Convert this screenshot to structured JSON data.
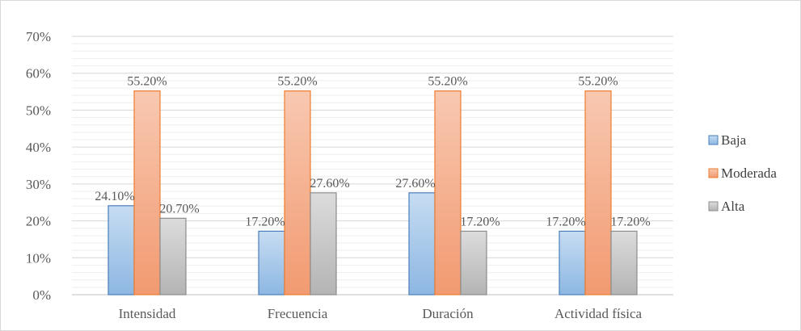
{
  "chart_data": {
    "type": "bar",
    "title": "",
    "xlabel": "",
    "ylabel": "",
    "categories": [
      "Intensidad",
      "Frecuencia",
      "Duración",
      "Actividad física"
    ],
    "series": [
      {
        "name": "Baja",
        "values": [
          24.1,
          17.2,
          27.6,
          17.2
        ],
        "labels": [
          "24.10%",
          "17.20%",
          "27.60%",
          "17.20%"
        ],
        "color": "#9dc3e6"
      },
      {
        "name": "Moderada",
        "values": [
          55.2,
          55.2,
          55.2,
          55.2
        ],
        "labels": [
          "55.20%",
          "55.20%",
          "55.20%",
          "55.20%"
        ],
        "color": "#f4a582"
      },
      {
        "name": "Alta",
        "values": [
          20.7,
          27.6,
          17.2,
          17.2
        ],
        "labels": [
          "20.70%",
          "27.60%",
          "17.20%",
          "17.20%"
        ],
        "color": "#bfbfbf"
      }
    ],
    "ylim": [
      0,
      70
    ],
    "yticks": [
      0,
      10,
      20,
      30,
      40,
      50,
      60,
      70
    ],
    "ytick_labels": [
      "0%",
      "10%",
      "20%",
      "30%",
      "40%",
      "50%",
      "60%",
      "70%"
    ],
    "grid": true,
    "legend_position": "right"
  },
  "colors": {
    "Baja_fill": "#9dc3e6",
    "Baja_border": "#4a7ebb",
    "Moderada_fill": "#f4a582",
    "Moderada_border": "#ed7d31",
    "Alta_fill": "#bfbfbf",
    "Alta_border": "#8c8c8c",
    "grid": "#e3e3e3"
  }
}
